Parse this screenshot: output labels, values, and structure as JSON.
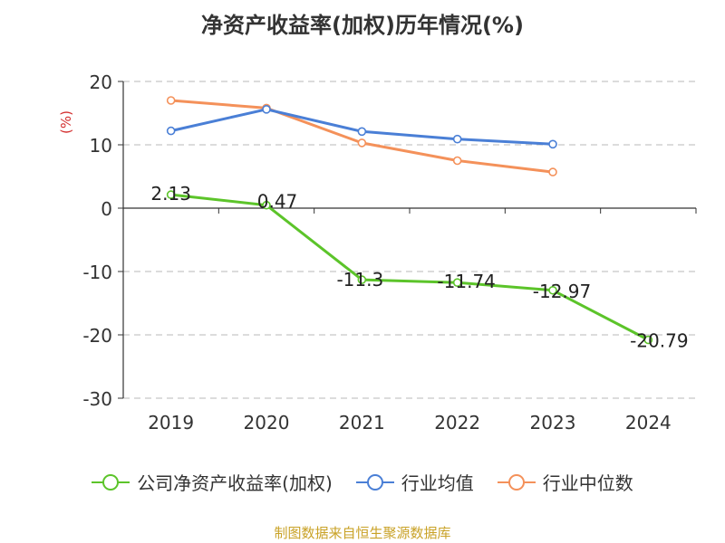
{
  "chart_data": {
    "type": "line",
    "title": "净资产收益率(加权)历年情况(%)",
    "ylabel": "(%)",
    "categories": [
      "2019",
      "2020",
      "2021",
      "2022",
      "2023",
      "2024"
    ],
    "ylim": [
      -30,
      20
    ],
    "yticks": [
      20,
      10,
      0,
      -10,
      -20,
      -30
    ],
    "grid": true,
    "legend_position": "bottom",
    "series": [
      {
        "name": "公司净资产收益率(加权)",
        "color": "#5cc42a",
        "values": [
          2.13,
          0.47,
          -11.3,
          -11.74,
          -12.97,
          -20.79
        ],
        "labels": [
          "2.13",
          "0.47",
          "-11.3",
          "-11.74",
          "-12.97",
          "-20.79"
        ]
      },
      {
        "name": "行业均值",
        "color": "#4a7fd6",
        "values": [
          12.2,
          15.6,
          12.1,
          10.9,
          10.1,
          null
        ]
      },
      {
        "name": "行业中位数",
        "color": "#f4915a",
        "values": [
          17.0,
          15.8,
          10.3,
          7.5,
          5.7,
          null
        ]
      }
    ]
  },
  "footer": {
    "source": "制图数据来自恒生聚源数据库"
  }
}
